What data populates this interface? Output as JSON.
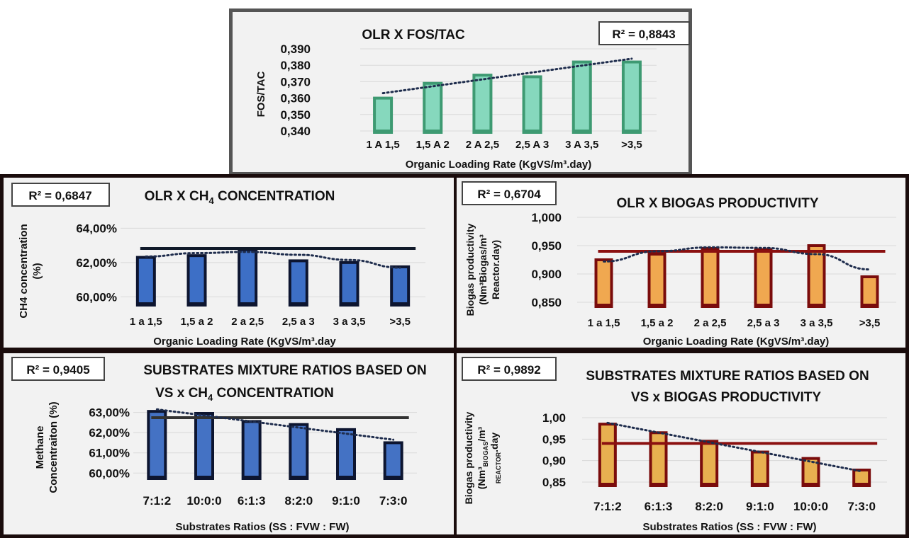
{
  "chart_data": [
    {
      "type": "bar",
      "title": "OLR X FOS/TAC",
      "xlabel": "Organic Loading Rate (KgVS/m³.day)",
      "ylabel": "FOS/TAC",
      "r2_label": "R² = 0,8843",
      "categories": [
        "1 A 1,5",
        "1,5 A 2",
        "2 A 2,5",
        "2,5 A 3",
        "3 A 3,5",
        ">3,5"
      ],
      "values": [
        0.36,
        0.369,
        0.374,
        0.373,
        0.382,
        0.382
      ],
      "ylim": [
        0.34,
        0.39
      ],
      "yticks": [
        "0,340",
        "0,350",
        "0,360",
        "0,370",
        "0,380",
        "0,390"
      ],
      "trendline": {
        "type": "linear",
        "start": 0.363,
        "end": 0.384,
        "style": "dotted"
      },
      "colors": {
        "bar_fill": "#86d8bd",
        "bar_edge": "#3e9a72",
        "trend": "#1f2d4d"
      }
    },
    {
      "type": "bar",
      "title_main": "OLR X CH",
      "title_sub": "4",
      "title_end": " CONCENTRATION",
      "xlabel": "Organic Loading Rate (KgVS/m³.day",
      "ylabel_lines": [
        "CH4 concentration",
        "(%)"
      ],
      "r2_label": "R² = 0,6847",
      "categories": [
        "1 a 1,5",
        "1,5 a 2",
        "2 a 2,5",
        "2,5 a 3",
        "3 a 3,5",
        ">3,5"
      ],
      "values": [
        62.3,
        62.4,
        62.75,
        62.1,
        62.0,
        61.75
      ],
      "ylim": [
        59.6,
        64.8
      ],
      "yticks": [
        "60,00%",
        "62,00%",
        "64,00%"
      ],
      "ytick_values": [
        60,
        62,
        64
      ],
      "mean_line": 62.82,
      "trendline": {
        "type": "polynomial",
        "points": [
          62.35,
          62.55,
          62.62,
          62.45,
          62.15,
          61.7
        ],
        "style": "dotted"
      },
      "colors": {
        "bar_fill": "#3d6fc6",
        "bar_edge": "#0d1530",
        "mean": "#111a2a",
        "trend": "#1f2d4d"
      }
    },
    {
      "type": "bar",
      "title": "OLR X BIOGAS PRODUCTIVITY",
      "xlabel": "Organic Loading Rate (KgVS/m³.day)",
      "ylabel_lines": [
        "Biogas productivity",
        "(Nm³Biogas/m³",
        "Reactor.day)"
      ],
      "r2_label": "R² = 0,6704",
      "categories": [
        "1 a 1,5",
        "1,5 a 2",
        "2 a 2,5",
        "2,5 a 3",
        "3 a 3,5",
        ">3,5"
      ],
      "values": [
        0.925,
        0.935,
        0.945,
        0.943,
        0.95,
        0.895
      ],
      "ylim": [
        0.845,
        1.005
      ],
      "yticks": [
        "0,850",
        "0,900",
        "0,950",
        "1,000"
      ],
      "ytick_values": [
        0.85,
        0.9,
        0.95,
        1.0
      ],
      "mean_line": 0.94,
      "trendline": {
        "type": "polynomial",
        "points": [
          0.922,
          0.94,
          0.947,
          0.946,
          0.935,
          0.908
        ],
        "style": "dotted"
      },
      "colors": {
        "bar_fill": "#f0a850",
        "bar_edge": "#7a0c0c",
        "mean": "#8b1010",
        "trend": "#1f2d4d"
      }
    },
    {
      "type": "bar",
      "title_line1": "SUBSTRATES MIXTURE RATIOS BASED ON",
      "title_line2_main": "VS x CH",
      "title_line2_sub": "4",
      "title_line2_end": " CONCENTRATION",
      "xlabel": "Substrates Ratios (SS : FVW : FW)",
      "ylabel_lines": [
        "Methane",
        "Concentraiton (%)"
      ],
      "r2_label": "R² = 0,9405",
      "categories": [
        "7:1:2",
        "10:0:0",
        "6:1:3",
        "8:2:0",
        "9:1:0",
        "7:3:0"
      ],
      "values": [
        63.05,
        62.95,
        62.55,
        62.4,
        62.15,
        61.5
      ],
      "ylim": [
        59.8,
        63.3
      ],
      "yticks": [
        "60,00%",
        "61,00%",
        "62,00%",
        "63,00%"
      ],
      "ytick_values": [
        60,
        61,
        62,
        63
      ],
      "mean_line": 62.74,
      "trendline": {
        "type": "linear",
        "start": 63.15,
        "end": 61.65,
        "style": "dotted"
      },
      "colors": {
        "bar_fill": "#4472c4",
        "bar_edge": "#0d1530",
        "mean": "#333333",
        "trend": "#1f2d4d"
      }
    },
    {
      "type": "bar",
      "title_line1": "SUBSTRATES MIXTURE  RATIOS BASED ON",
      "title_line2": "VS x BIOGAS PRODUCTIVITY",
      "xlabel": "Substrates Ratios (SS : FVW : FW)",
      "ylabel_line1": "Biogas productivity",
      "ylabel_line2_a": "(Nm³",
      "ylabel_line2_b": "BIOGAS",
      "ylabel_line2_c": "/m³",
      "ylabel_line3_a": "REACTOR",
      "ylabel_line3_b": ".day",
      "r2_label": "R² = 0,9892",
      "categories": [
        "7:1:2",
        "6:1:3",
        "8:2:0",
        "9:1:0",
        "10:0:0",
        "7:3:0"
      ],
      "values": [
        0.985,
        0.965,
        0.945,
        0.92,
        0.905,
        0.878
      ],
      "ylim": [
        0.845,
        1.01
      ],
      "yticks": [
        "0,85",
        "0,90",
        "0,95",
        "1,00"
      ],
      "ytick_values": [
        0.85,
        0.9,
        0.95,
        1.0
      ],
      "mean_line": 0.94,
      "trendline": {
        "type": "linear",
        "start": 0.988,
        "end": 0.875,
        "style": "dotted"
      },
      "colors": {
        "bar_fill": "#e8b050",
        "bar_edge": "#7a0c0c",
        "mean": "#8b1010",
        "trend": "#1f2d4d"
      }
    }
  ]
}
